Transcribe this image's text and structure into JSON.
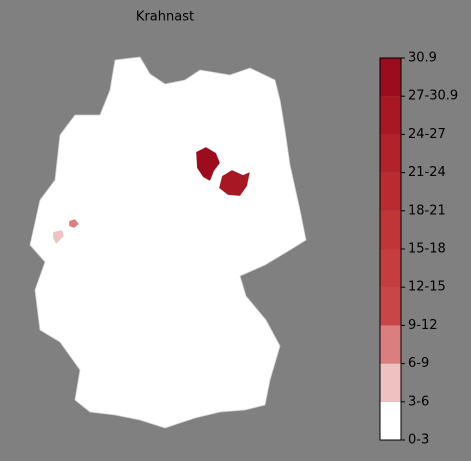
{
  "title": "Krahnast",
  "colorbar": {
    "bounds": [
      0,
      3,
      6,
      9,
      12,
      15,
      18,
      21,
      24,
      27,
      30.9
    ],
    "labels": [
      "0-3",
      "3-6",
      "6-9",
      "9-12",
      "12-15",
      "15-18",
      "18-21",
      "21-24",
      "24-27",
      "27-30.9",
      "30.9"
    ],
    "colors": [
      "#ffffff",
      "#efc2c2",
      "#db7e7f",
      "#c84647",
      "#c43d3f",
      "#bf3538",
      "#b92b31",
      "#b1222a",
      "#a81724",
      "#9a0c1e"
    ]
  },
  "regions": [
    {
      "value": 29
    },
    {
      "value": 25
    },
    {
      "value": 7
    },
    {
      "value": 5
    }
  ]
}
